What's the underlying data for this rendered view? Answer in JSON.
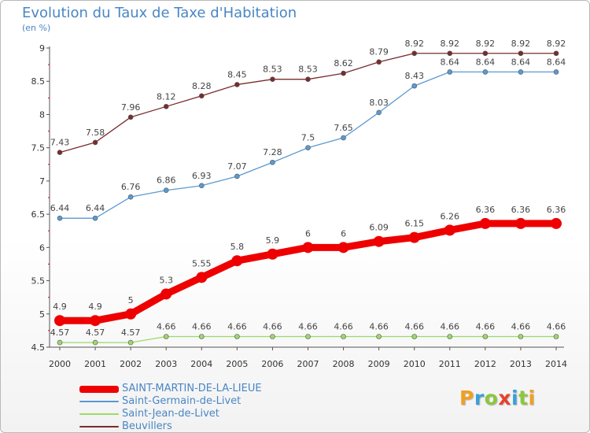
{
  "title": "Evolution du Taux de Taxe d'Habitation",
  "subtitle": "(en %)",
  "logo": {
    "text": "Proxiti",
    "letter_colors": [
      "#f0a020",
      "#3aa0d8",
      "#8dc63f",
      "#e8402a",
      "#3aa0d8",
      "#8dc63f",
      "#f0a020"
    ]
  },
  "chart_data": {
    "type": "line",
    "x": [
      "2000",
      "2001",
      "2002",
      "2003",
      "2004",
      "2005",
      "2006",
      "2007",
      "2008",
      "2009",
      "2010",
      "2011",
      "2012",
      "2013",
      "2014"
    ],
    "ylim": [
      4.5,
      9
    ],
    "yticks": [
      "4.5",
      "5",
      "5.5",
      "6",
      "6.5",
      "7",
      "7.5",
      "8",
      "8.5",
      "9"
    ],
    "grid": false,
    "legend_position": "bottom-left",
    "series": [
      {
        "name": "Beuvillers",
        "color": "#7a2c2c",
        "values": [
          7.43,
          7.58,
          7.96,
          8.12,
          8.28,
          8.45,
          8.53,
          8.53,
          8.62,
          8.79,
          8.92,
          8.92,
          8.92,
          8.92,
          8.92
        ],
        "labels": [
          "7.43",
          "7.58",
          "7.96",
          "8.12",
          "8.28",
          "8.45",
          "8.53",
          "8.53",
          "8.62",
          "8.79",
          "8.92",
          "8.92",
          "8.92",
          "8.92",
          "8.92"
        ]
      },
      {
        "name": "Saint-Germain-de-Livet",
        "color": "#5b9ad0",
        "values": [
          6.44,
          6.44,
          6.76,
          6.86,
          6.93,
          7.07,
          7.28,
          7.5,
          7.65,
          8.03,
          8.43,
          8.64,
          8.64,
          8.64,
          8.64
        ],
        "labels": [
          "6.44",
          "6.44",
          "6.76",
          "6.86",
          "6.93",
          "7.07",
          "7.28",
          "7.5",
          "7.65",
          "8.03",
          "8.43",
          "8.64",
          "8.64",
          "8.64",
          "8.64"
        ]
      },
      {
        "name": "SAINT-MARTIN-DE-LA-LIEUE",
        "color": "#ee0000",
        "values": [
          4.9,
          4.9,
          5,
          5.3,
          5.55,
          5.8,
          5.9,
          6,
          6,
          6.09,
          6.15,
          6.26,
          6.36,
          6.36,
          6.36
        ],
        "labels": [
          "4.9",
          "4.9",
          "5",
          "5.3",
          "5.55",
          "5.8",
          "5.9",
          "6",
          "6",
          "6.09",
          "6.15",
          "6.26",
          "6.36",
          "6.36",
          "6.36"
        ]
      },
      {
        "name": "Saint-Jean-de-Livet",
        "color": "#9ed86a",
        "values": [
          4.57,
          4.57,
          4.57,
          4.66,
          4.66,
          4.66,
          4.66,
          4.66,
          4.66,
          4.66,
          4.66,
          4.66,
          4.66,
          4.66,
          4.66
        ],
        "labels": [
          "4.57",
          "4.57",
          "4.57",
          "4.66",
          "4.66",
          "4.66",
          "4.66",
          "4.66",
          "4.66",
          "4.66",
          "4.66",
          "4.66",
          "4.66",
          "4.66",
          "4.66"
        ]
      }
    ],
    "legend": [
      {
        "name": "SAINT-MARTIN-DE-LA-LIEUE",
        "color": "#ee0000"
      },
      {
        "name": "Saint-Germain-de-Livet",
        "color": "#5b9ad0"
      },
      {
        "name": "Saint-Jean-de-Livet",
        "color": "#9ed86a"
      },
      {
        "name": "Beuvillers",
        "color": "#7a2c2c"
      }
    ]
  }
}
